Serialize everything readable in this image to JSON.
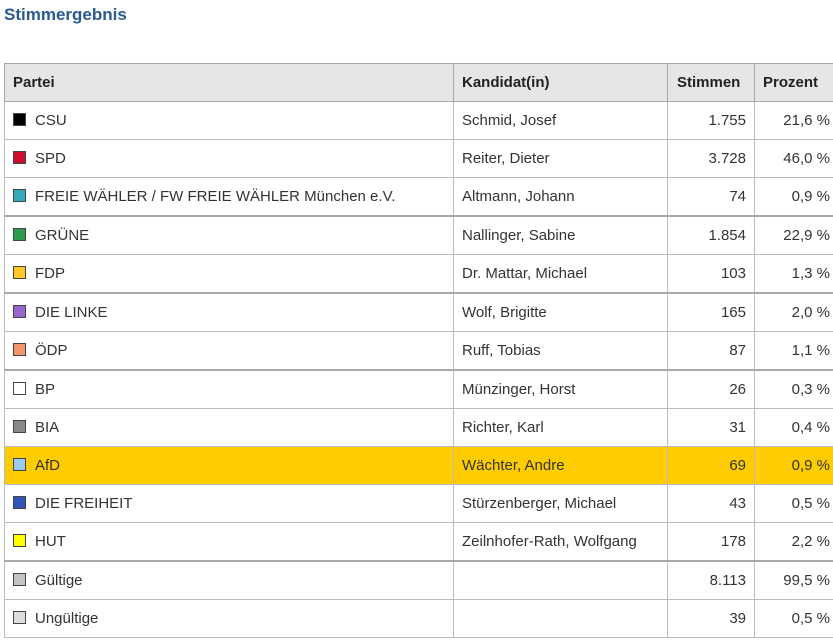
{
  "title": "Stimmergebnis",
  "headers": {
    "partei": "Partei",
    "kandidat": "Kandidat(in)",
    "stimmen": "Stimmen",
    "prozent": "Prozent"
  },
  "rows": [
    {
      "partei": "CSU",
      "kandidat": "Schmid, Josef",
      "stimmen": "1.755",
      "prozent": "21,6 %",
      "color": "#000000"
    },
    {
      "partei": "SPD",
      "kandidat": "Reiter, Dieter",
      "stimmen": "3.728",
      "prozent": "46,0 %",
      "color": "#c8102e"
    },
    {
      "partei": "FREIE WÄHLER / FW FREIE WÄHLER München e.V.",
      "kandidat": "Altmann, Johann",
      "stimmen": "74",
      "prozent": "0,9 %",
      "color": "#33aabb"
    },
    {
      "partei": "GRÜNE",
      "kandidat": "Nallinger, Sabine",
      "stimmen": "1.854",
      "prozent": "22,9 %",
      "color": "#2e9b4f"
    },
    {
      "partei": "FDP",
      "kandidat": "Dr. Mattar, Michael",
      "stimmen": "103",
      "prozent": "1,3 %",
      "color": "#ffc829"
    },
    {
      "partei": "DIE LINKE",
      "kandidat": "Wolf, Brigitte",
      "stimmen": "165",
      "prozent": "2,0 %",
      "color": "#9966cc"
    },
    {
      "partei": "ÖDP",
      "kandidat": "Ruff, Tobias",
      "stimmen": "87",
      "prozent": "1,1 %",
      "color": "#f4946a"
    },
    {
      "partei": "BP",
      "kandidat": "Münzinger, Horst",
      "stimmen": "26",
      "prozent": "0,3 %",
      "color": "#ffffff"
    },
    {
      "partei": "BIA",
      "kandidat": "Richter, Karl",
      "stimmen": "31",
      "prozent": "0,4 %",
      "color": "#888888"
    },
    {
      "partei": "AfD",
      "kandidat": "Wächter, Andre",
      "stimmen": "69",
      "prozent": "0,9 %",
      "color": "#99ccee",
      "highlight": true
    },
    {
      "partei": "DIE FREIHEIT",
      "kandidat": "Stürzenberger, Michael",
      "stimmen": "43",
      "prozent": "0,5 %",
      "color": "#3355bb"
    },
    {
      "partei": "HUT",
      "kandidat": "Zeilnhofer-Rath, Wolfgang",
      "stimmen": "178",
      "prozent": "2,2 %",
      "color": "#ffff00"
    },
    {
      "partei": "Gültige",
      "kandidat": "",
      "stimmen": "8.113",
      "prozent": "99,5 %",
      "color": "#c4c4c4"
    },
    {
      "partei": "Ungültige",
      "kandidat": "",
      "stimmen": "39",
      "prozent": "0,5 %",
      "color": "#dddddd"
    }
  ]
}
